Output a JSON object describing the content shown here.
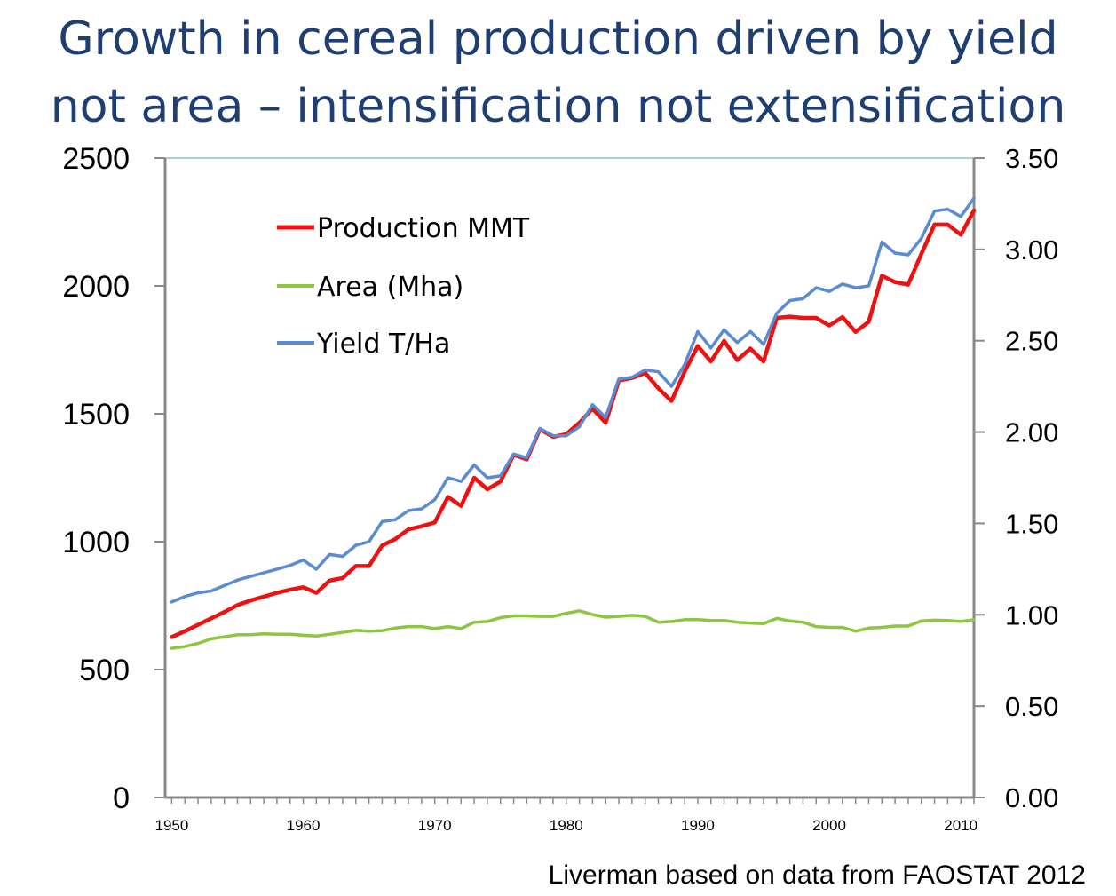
{
  "title": {
    "line1": "Growth in cereal production driven by yield",
    "line2": "not area – intensification not extensification"
  },
  "source": "Liverman based on data from FAOSTAT 2012",
  "chart_data": {
    "type": "line",
    "title": "Growth in cereal production driven by yield not area – intensification not extensification",
    "xlim": [
      1949.5,
      2011
    ],
    "x_ticks": [
      1950,
      1960,
      1970,
      1980,
      1990,
      2000,
      2010
    ],
    "ylim": [
      0,
      2500
    ],
    "y_ticks": [
      0,
      500,
      1000,
      1500,
      2000,
      2500
    ],
    "y2lim": [
      0,
      3.5
    ],
    "y2_ticks": [
      "0.00",
      "0.50",
      "1.00",
      "1.50",
      "2.00",
      "2.50",
      "3.00",
      "3.50"
    ],
    "grid": false,
    "legend_position": "top-left",
    "x": [
      1950,
      1951,
      1952,
      1953,
      1954,
      1955,
      1956,
      1957,
      1958,
      1959,
      1960,
      1961,
      1962,
      1963,
      1964,
      1965,
      1966,
      1967,
      1968,
      1969,
      1970,
      1971,
      1972,
      1973,
      1974,
      1975,
      1976,
      1977,
      1978,
      1979,
      1980,
      1981,
      1982,
      1983,
      1984,
      1985,
      1986,
      1987,
      1988,
      1989,
      1990,
      1991,
      1992,
      1993,
      1994,
      1995,
      1996,
      1997,
      1998,
      1999,
      2000,
      2001,
      2002,
      2003,
      2004,
      2005,
      2006,
      2007,
      2008,
      2009,
      2010,
      2011
    ],
    "series": [
      {
        "name": "Production MMT",
        "axis": "left",
        "color": "#ee1111",
        "values": [
          627,
          650,
          675,
          700,
          725,
          752,
          770,
          785,
          800,
          812,
          822,
          800,
          848,
          858,
          905,
          905,
          985,
          1010,
          1048,
          1060,
          1075,
          1175,
          1140,
          1250,
          1205,
          1235,
          1340,
          1322,
          1440,
          1410,
          1420,
          1465,
          1520,
          1465,
          1630,
          1640,
          1660,
          1600,
          1550,
          1665,
          1765,
          1705,
          1785,
          1710,
          1755,
          1705,
          1875,
          1880,
          1875,
          1875,
          1845,
          1878,
          1820,
          1860,
          2040,
          2015,
          2005,
          2125,
          2240,
          2240,
          2200,
          2295
        ]
      },
      {
        "name": "Area (Mha)",
        "axis": "left",
        "color": "#8dc63f",
        "values": [
          583,
          590,
          602,
          620,
          628,
          636,
          636,
          640,
          638,
          638,
          634,
          631,
          638,
          645,
          653,
          650,
          652,
          662,
          668,
          668,
          660,
          668,
          660,
          685,
          688,
          703,
          710,
          710,
          708,
          708,
          720,
          730,
          715,
          705,
          708,
          712,
          708,
          685,
          688,
          695,
          695,
          692,
          692,
          685,
          682,
          680,
          700,
          690,
          685,
          668,
          665,
          665,
          650,
          662,
          665,
          670,
          670,
          690,
          693,
          692,
          688,
          695
        ]
      },
      {
        "name": "Yield T/Ha",
        "axis": "right",
        "color": "#5b8bd0",
        "values": [
          1.07,
          1.1,
          1.12,
          1.13,
          1.16,
          1.19,
          1.21,
          1.23,
          1.25,
          1.27,
          1.3,
          1.25,
          1.33,
          1.32,
          1.38,
          1.4,
          1.51,
          1.52,
          1.57,
          1.58,
          1.63,
          1.75,
          1.73,
          1.82,
          1.75,
          1.76,
          1.88,
          1.86,
          2.02,
          1.98,
          1.98,
          2.03,
          2.15,
          2.08,
          2.29,
          2.3,
          2.34,
          2.33,
          2.25,
          2.37,
          2.55,
          2.46,
          2.56,
          2.49,
          2.55,
          2.48,
          2.65,
          2.72,
          2.73,
          2.79,
          2.77,
          2.81,
          2.79,
          2.8,
          3.04,
          2.98,
          2.97,
          3.06,
          3.21,
          3.22,
          3.18,
          3.28
        ]
      }
    ]
  }
}
